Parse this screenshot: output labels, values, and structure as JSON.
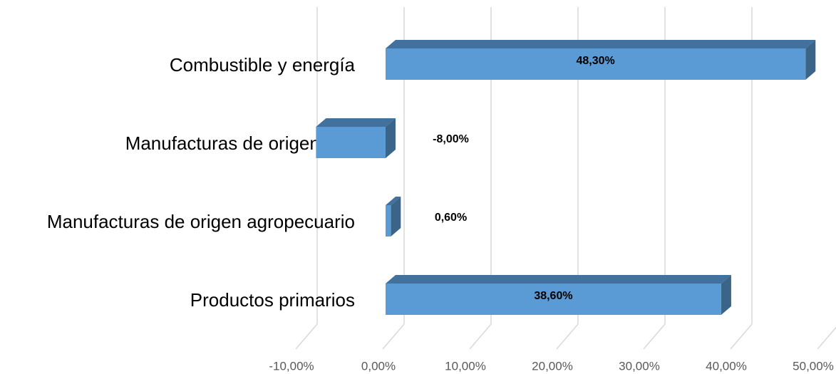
{
  "chart_data": {
    "type": "bar3d_horizontal",
    "categories": [
      "Combustible y energía",
      "Manufacturas de origen ind.",
      "Manufacturas de origen agropecuario",
      "Productos primarios"
    ],
    "values": [
      48.3,
      -8,
      0.6,
      38.6
    ],
    "value_labels": [
      "48,30%",
      "-8,00%",
      "0,60%",
      "38,60%"
    ],
    "color": "#5b9bd5",
    "xlim": [
      -10,
      50
    ],
    "xticks": [
      {
        "value": -10,
        "label": "-10,00%"
      },
      {
        "value": 0,
        "label": "0,00%"
      },
      {
        "value": 10,
        "label": "10,00%"
      },
      {
        "value": 20,
        "label": "20,00%"
      },
      {
        "value": 30,
        "label": "30,00%"
      },
      {
        "value": 40,
        "label": "40,00%"
      },
      {
        "value": 50,
        "label": "50,00%"
      }
    ],
    "grid": true
  }
}
